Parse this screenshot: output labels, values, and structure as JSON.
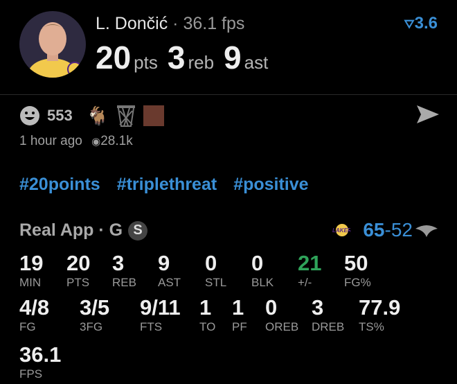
{
  "player": {
    "name": "L. Dončić",
    "fps_line": "36.1 fps",
    "pts": "20",
    "pts_unit": "pts",
    "reb": "3",
    "reb_unit": "reb",
    "ast": "9",
    "ast_unit": "ast",
    "delta": "3.6"
  },
  "reactions": {
    "count": "553",
    "time": "1 hour ago",
    "views": "28.1k"
  },
  "tags": [
    "#20points",
    "#triplethreat",
    "#positive"
  ],
  "source": {
    "label": "Real App · G",
    "badge": "S"
  },
  "score": {
    "team": "65",
    "sep": "-",
    "opp": "52"
  },
  "colors": {
    "accent": "#3a8fd6",
    "positive": "#2fa35a",
    "background": "#000000"
  },
  "stats_row1": [
    {
      "value": "19",
      "label": "MIN"
    },
    {
      "value": "20",
      "label": "PTS"
    },
    {
      "value": "3",
      "label": "REB"
    },
    {
      "value": "9",
      "label": "AST"
    },
    {
      "value": "0",
      "label": "STL"
    },
    {
      "value": "0",
      "label": "BLK"
    },
    {
      "value": "21",
      "label": "+/-"
    },
    {
      "value": "50",
      "label": "FG%"
    }
  ],
  "stats_row2": [
    {
      "value": "4/8",
      "label": "FG"
    },
    {
      "value": "3/5",
      "label": "3FG"
    },
    {
      "value": "9/11",
      "label": "FTS"
    },
    {
      "value": "1",
      "label": "TO"
    },
    {
      "value": "1",
      "label": "PF"
    },
    {
      "value": "0",
      "label": "OREB"
    },
    {
      "value": "3",
      "label": "DREB"
    },
    {
      "value": "77.9",
      "label": "TS%"
    }
  ],
  "stats_row3": [
    {
      "value": "36.1",
      "label": "FPS"
    }
  ]
}
